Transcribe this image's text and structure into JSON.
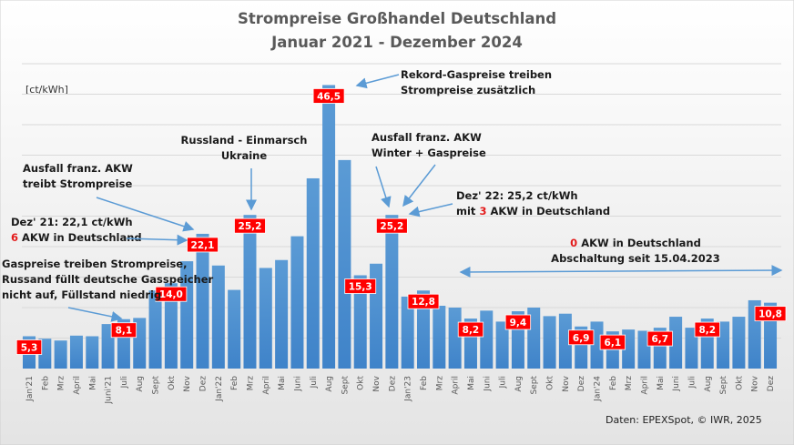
{
  "chart_data": {
    "type": "bar",
    "title": "Strompreise Großhandel Deutschland",
    "subtitle": "Januar 2021 - Dezember 2024",
    "ylabel": "[ct/kWh]",
    "xlabel": "",
    "ylim": [
      0,
      50
    ],
    "grid": true,
    "bar_color": "#5b9bd5",
    "categories": [
      "Jan'21",
      "Feb",
      "Mrz",
      "April",
      "Mai",
      "Juni'21",
      "Juli",
      "Aug",
      "Sept",
      "Okt",
      "Nov",
      "Dez",
      "Jan'22",
      "Feb",
      "Mrz",
      "April",
      "Mai",
      "Juni",
      "Juli",
      "Aug",
      "Sept",
      "Okt",
      "Nov",
      "Dez",
      "Jan'23",
      "Feb",
      "Mrz",
      "April",
      "Mai",
      "Juni",
      "Juli",
      "Aug",
      "Sept",
      "Okt",
      "Nov",
      "Dez",
      "Jan'24",
      "Feb",
      "Mrz",
      "April",
      "Mai",
      "Juni",
      "Juli",
      "Aug",
      "Sept",
      "Okt",
      "Nov",
      "Dez"
    ],
    "values": [
      5.3,
      4.9,
      4.6,
      5.4,
      5.3,
      7.3,
      8.1,
      8.3,
      12.8,
      14.0,
      17.6,
      22.1,
      16.9,
      12.9,
      25.2,
      16.5,
      17.8,
      21.7,
      31.2,
      46.5,
      34.2,
      15.3,
      17.2,
      25.2,
      11.8,
      12.8,
      10.3,
      10.0,
      8.2,
      9.5,
      7.7,
      9.4,
      10.0,
      8.6,
      9.0,
      6.9,
      7.7,
      6.1,
      6.4,
      6.2,
      6.7,
      8.5,
      6.7,
      8.2,
      7.7,
      8.5,
      11.2,
      10.8
    ],
    "data_labels": [
      {
        "index": 0,
        "text": "5,3"
      },
      {
        "index": 6,
        "text": "8,1"
      },
      {
        "index": 9,
        "text": "14,0"
      },
      {
        "index": 11,
        "text": "22,1"
      },
      {
        "index": 14,
        "text": "25,2"
      },
      {
        "index": 19,
        "text": "46,5"
      },
      {
        "index": 21,
        "text": "15,3"
      },
      {
        "index": 23,
        "text": "25,2"
      },
      {
        "index": 25,
        "text": "12,8"
      },
      {
        "index": 28,
        "text": "8,2"
      },
      {
        "index": 31,
        "text": "9,4"
      },
      {
        "index": 35,
        "text": "6,9"
      },
      {
        "index": 37,
        "text": "6,1"
      },
      {
        "index": 40,
        "text": "6,7"
      },
      {
        "index": 43,
        "text": "8,2"
      },
      {
        "index": 47,
        "text": "10,8"
      }
    ],
    "label_color": "#ff0000",
    "source": "Daten: EPEXSpot, © IWR, 2025"
  },
  "annotations": {
    "rekord": [
      "Rekord-Gaspreise treiben",
      "Strompreise zusätzlich"
    ],
    "russland": [
      "Russland - Einmarsch",
      "Ukraine"
    ],
    "ausfall21": [
      "Ausfall franz. AKW",
      "treibt Strompreise"
    ],
    "dez21": {
      "line1": "Dez' 21: 22,1 ct/kWh",
      "num": "6",
      "rest": " AKW in Deutschland"
    },
    "gas": [
      "Gaspreise treiben Strompreise,",
      "Russand füllt deutsche Gasspeicher",
      "nicht auf, Füllstand niedrig"
    ],
    "ausfall22": [
      "Ausfall franz. AKW",
      "Winter + Gaspreise"
    ],
    "dez22": {
      "line1": "Dez' 22: 25,2 ct/kWh",
      "pre": "mit ",
      "num": "3",
      "rest": " AKW in Deutschland"
    },
    "akw0": {
      "num": "0",
      "rest": " AKW in Deutschland",
      "line2": "Abschaltung seit 15.04.2023"
    }
  }
}
